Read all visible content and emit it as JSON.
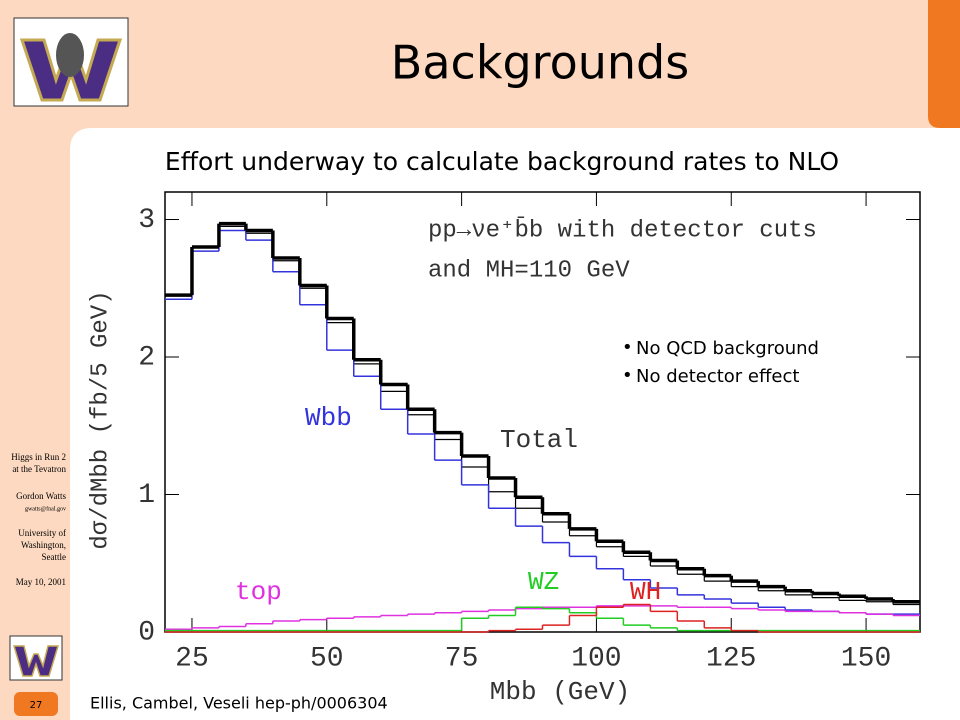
{
  "slide": {
    "title": "Backgrounds",
    "subtitle": "Effort underway to calculate background rates to NLO",
    "bullets": [
      "No QCD background",
      "No detector effect"
    ],
    "citation": "Ellis, Cambel, Veseli hep-ph/0006304",
    "sidebar": [
      "Higgs in Run 2",
      "at the Tevatron",
      "Gordon Watts",
      "gwatts@fnal.gov",
      "University of",
      "Washington,",
      "Seattle",
      "May 10, 2001"
    ],
    "page_number": "27"
  },
  "chart_data": {
    "type": "histogram",
    "x_label": "Mbb (GeV)",
    "y_label": "dσ/dMbb (fb/5 GeV)",
    "annotations": [
      "pp→νe⁺b̄b with detector cuts",
      "and MH=110 GeV"
    ],
    "bins": [
      20,
      25,
      30,
      35,
      40,
      45,
      50,
      55,
      60,
      65,
      70,
      75,
      80,
      85,
      90,
      95,
      100,
      105,
      110,
      115,
      120,
      125,
      130,
      135,
      140,
      145,
      150,
      155,
      160
    ],
    "series": [
      {
        "name": "Total",
        "color": "#000000",
        "values": [
          2.45,
          2.8,
          2.97,
          2.92,
          2.72,
          2.52,
          2.28,
          1.98,
          1.8,
          1.62,
          1.45,
          1.28,
          1.12,
          0.98,
          0.86,
          0.75,
          0.66,
          0.58,
          0.52,
          0.46,
          0.41,
          0.37,
          0.33,
          0.3,
          0.28,
          0.26,
          0.24,
          0.22
        ]
      },
      {
        "color": "#000000",
        "values": [
          2.45,
          2.8,
          2.95,
          2.9,
          2.7,
          2.5,
          2.25,
          1.95,
          1.75,
          1.58,
          1.4,
          1.2,
          1.02,
          0.9,
          0.8,
          0.7,
          0.62,
          0.55,
          0.48,
          0.42,
          0.37,
          0.33,
          0.3,
          0.27,
          0.25,
          0.23,
          0.22,
          0.2
        ]
      },
      {
        "name": "Wbb",
        "color": "#3333dd",
        "values": [
          2.42,
          2.77,
          2.92,
          2.85,
          2.62,
          2.38,
          2.05,
          1.86,
          1.62,
          1.44,
          1.25,
          1.07,
          0.9,
          0.77,
          0.65,
          0.55,
          0.46,
          0.38,
          0.32,
          0.27,
          0.24,
          0.21,
          0.18,
          0.16,
          0.15,
          0.14,
          0.13,
          0.13
        ]
      },
      {
        "name": "top",
        "color": "#e030e0",
        "values": [
          0.02,
          0.03,
          0.04,
          0.06,
          0.08,
          0.09,
          0.1,
          0.11,
          0.12,
          0.13,
          0.14,
          0.15,
          0.16,
          0.17,
          0.18,
          0.18,
          0.19,
          0.19,
          0.19,
          0.18,
          0.18,
          0.17,
          0.16,
          0.15,
          0.15,
          0.14,
          0.13,
          0.12
        ]
      },
      {
        "name": "WZ",
        "color": "#22cc22",
        "values": [
          0.01,
          0.01,
          0.01,
          0.01,
          0.01,
          0.01,
          0.01,
          0.01,
          0.01,
          0.01,
          0.01,
          0.1,
          0.12,
          0.18,
          0.17,
          0.14,
          0.1,
          0.05,
          0.03,
          0.01,
          0.01,
          0.01,
          0.01,
          0.01,
          0.01,
          0.01,
          0.01,
          0.01
        ]
      },
      {
        "name": "WH",
        "color": "#dd2222",
        "values": [
          0,
          0,
          0,
          0,
          0,
          0,
          0,
          0,
          0,
          0,
          0,
          0,
          0.01,
          0.02,
          0.05,
          0.12,
          0.18,
          0.2,
          0.15,
          0.08,
          0.03,
          0.01,
          0,
          0,
          0,
          0,
          0,
          0
        ]
      }
    ],
    "xlim": [
      20,
      160
    ],
    "xticks": [
      25,
      50,
      75,
      100,
      125,
      150
    ],
    "ylim": [
      0,
      3.2
    ],
    "yticks": [
      0,
      1,
      2,
      3
    ]
  }
}
